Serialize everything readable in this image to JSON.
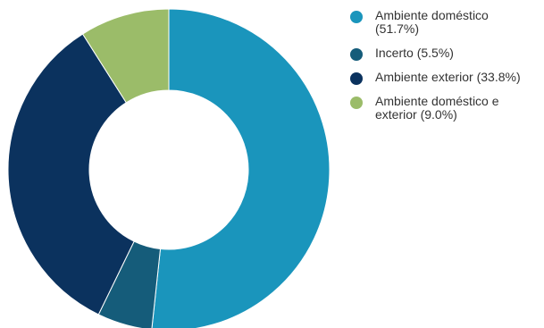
{
  "chart_data": {
    "type": "pie",
    "variant": "donut",
    "title": "",
    "slices": [
      {
        "label": "Ambiente doméstico",
        "value": 51.7,
        "color": "#1a95bc"
      },
      {
        "label": "Incerto",
        "value": 5.5,
        "color": "#155c7a"
      },
      {
        "label": "Ambiente exterior",
        "value": 33.8,
        "color": "#0b325e"
      },
      {
        "label": "Ambiente doméstico e exterior",
        "value": 9.0,
        "color": "#9bbc69"
      }
    ],
    "legend_position": "right"
  },
  "legend": {
    "items": [
      {
        "lines": [
          "Ambiente doméstico",
          "(51.7%)"
        ]
      },
      {
        "lines": [
          "Incerto (5.5%)"
        ]
      },
      {
        "lines": [
          "Ambiente exterior (33.8%)"
        ]
      },
      {
        "lines": [
          "Ambiente doméstico e",
          "exterior (9.0%)"
        ]
      }
    ]
  }
}
